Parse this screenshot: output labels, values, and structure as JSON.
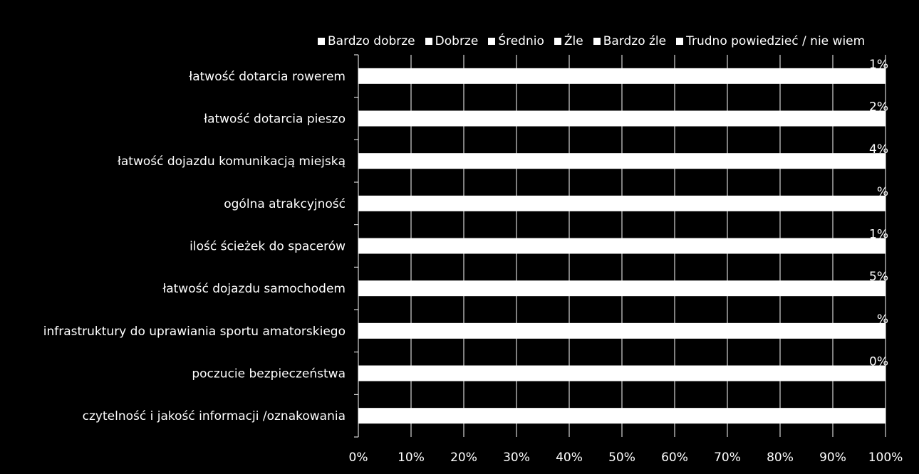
{
  "chart_data": {
    "type": "bar",
    "orientation": "horizontal",
    "stacked": "percent",
    "categories": [
      "łatwość dotarcia rowerem",
      "łatwość dotarcia pieszo",
      "łatwość dojazdu komunikacją miejską",
      "ogólna atrakcyjność",
      "ilość ścieżek do spacerów",
      "łatwość dojazdu samochodem",
      "infrastruktury do uprawiania sportu amatorskiego",
      "poczucie bezpieczeństwa",
      "czytelność i jakość informacji /oznakowania"
    ],
    "series": [
      {
        "name": "Bardzo dobrze",
        "values": [
          null,
          null,
          null,
          null,
          null,
          null,
          null,
          null,
          null
        ]
      },
      {
        "name": "Dobrze",
        "values": [
          null,
          null,
          null,
          null,
          null,
          null,
          null,
          null,
          null
        ]
      },
      {
        "name": "Średnio",
        "values": [
          null,
          null,
          null,
          null,
          null,
          null,
          null,
          null,
          null
        ]
      },
      {
        "name": "Źle",
        "values": [
          null,
          null,
          null,
          null,
          null,
          null,
          null,
          null,
          null
        ]
      },
      {
        "name": "Bardzo źle",
        "values": [
          null,
          null,
          null,
          null,
          null,
          null,
          null,
          null,
          null
        ]
      },
      {
        "name": "Trudno powiedzieć / nie wiem",
        "values": [
          null,
          null,
          null,
          null,
          null,
          null,
          null,
          null,
          null
        ]
      }
    ],
    "data_labels": [
      "1%",
      "2%",
      "4%",
      "%",
      "1%",
      "5%",
      "%",
      "0%",
      ""
    ],
    "xticks": [
      "0%",
      "10%",
      "20%",
      "30%",
      "40%",
      "50%",
      "60%",
      "70%",
      "80%",
      "90%",
      "100%"
    ],
    "xlim": [
      0,
      100
    ],
    "legend": "top",
    "grid": true,
    "colors": {
      "background": "#000000",
      "bar": "#ffffff",
      "text": "#ffffff",
      "axis": "#ffffff"
    }
  }
}
